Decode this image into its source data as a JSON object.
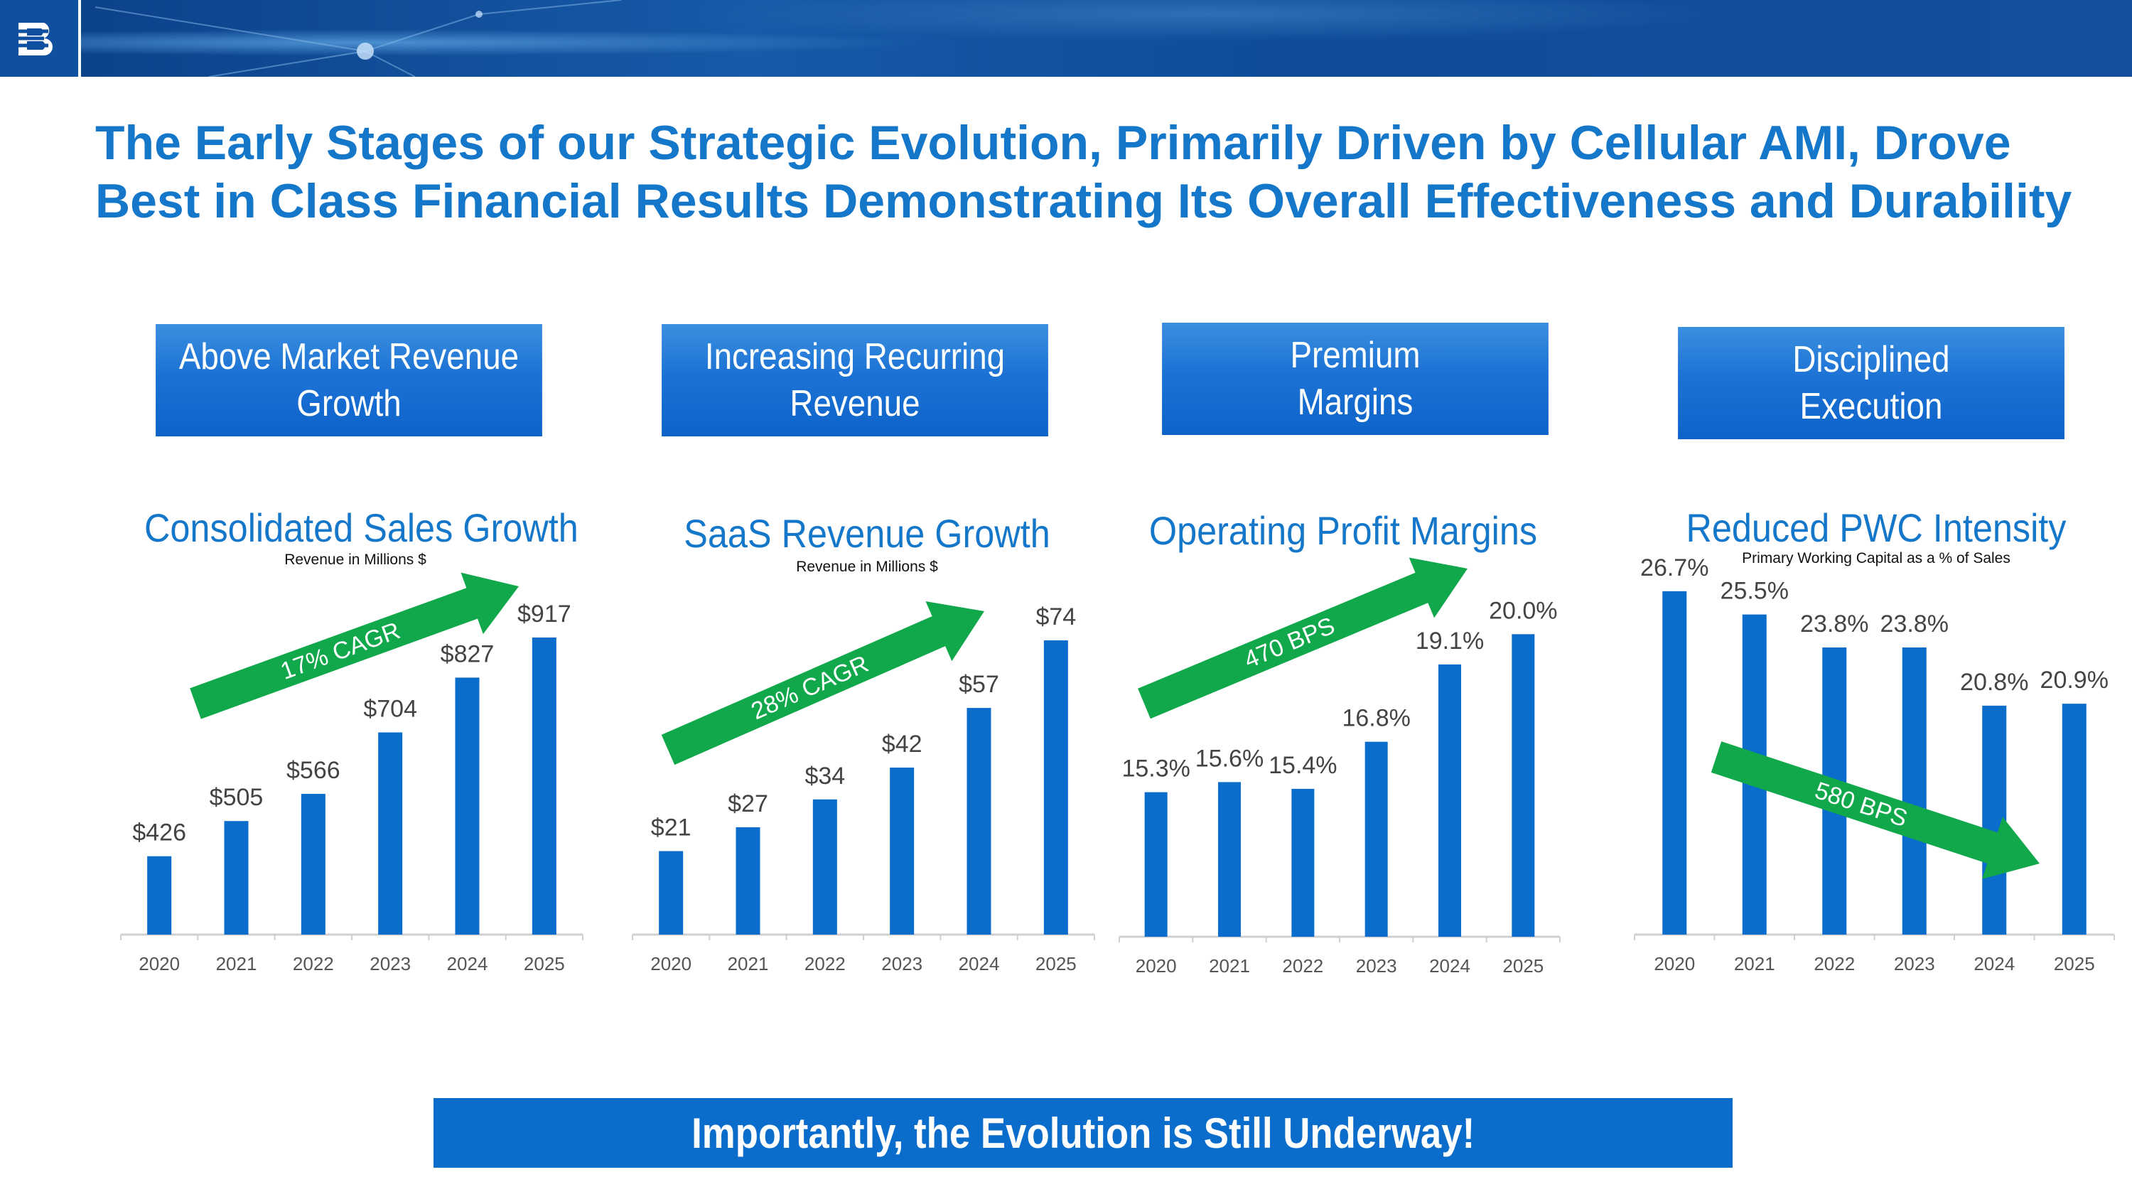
{
  "header": {
    "logo_icon": "badger-meter-logo-icon",
    "title": "The Early Stages of our Strategic Evolution, Primarily Driven by Cellular AMI, Drove Best in Class Financial Results Demonstrating Its Overall Effectiveness and Durability"
  },
  "pillars": [
    {
      "label": "Above Market Revenue\nGrowth"
    },
    {
      "label": "Increasing Recurring\nRevenue"
    },
    {
      "label": "Premium\nMargins"
    },
    {
      "label": "Disciplined\nExecution"
    }
  ],
  "colors": {
    "bar": "#0a6ccb",
    "arrow": "#10a84a",
    "title": "#1477c9"
  },
  "chart_data": [
    {
      "type": "bar",
      "title": "Consolidated Sales Growth",
      "subtitle": "Revenue in Millions $",
      "categories": [
        "2020",
        "2021",
        "2022",
        "2023",
        "2024",
        "2025"
      ],
      "values": [
        426,
        505,
        566,
        704,
        827,
        917
      ],
      "data_labels": [
        "$426",
        "$505",
        "$566",
        "$704",
        "$827",
        "$917"
      ],
      "ylim": [
        250,
        1000
      ],
      "annotation": {
        "text": "17% CAGR",
        "direction": "up"
      }
    },
    {
      "type": "bar",
      "title": "SaaS Revenue Growth",
      "subtitle": "Revenue in Millions $",
      "categories": [
        "2020",
        "2021",
        "2022",
        "2023",
        "2024",
        "2025"
      ],
      "values": [
        21,
        27,
        34,
        42,
        57,
        74
      ],
      "data_labels": [
        "$21",
        "$27",
        "$34",
        "$42",
        "$57",
        "$74"
      ],
      "ylim": [
        0,
        84
      ],
      "annotation": {
        "text": "28% CAGR",
        "direction": "up"
      }
    },
    {
      "type": "bar",
      "title": "Operating Profit Margins",
      "subtitle": "",
      "categories": [
        "2020",
        "2021",
        "2022",
        "2023",
        "2024",
        "2025"
      ],
      "values": [
        15.3,
        15.6,
        15.4,
        16.8,
        19.1,
        20.0
      ],
      "data_labels": [
        "15.3%",
        "15.6%",
        "15.4%",
        "16.8%",
        "19.1%",
        "20.0%"
      ],
      "ylim": [
        11,
        21
      ],
      "annotation": {
        "text": "470 BPS",
        "direction": "up"
      }
    },
    {
      "type": "bar",
      "title": "Reduced PWC Intensity",
      "subtitle": "Primary Working Capital as a % of Sales",
      "categories": [
        "2020",
        "2021",
        "2022",
        "2023",
        "2024",
        "2025"
      ],
      "values": [
        26.7,
        25.5,
        23.8,
        23.8,
        20.8,
        20.9
      ],
      "data_labels": [
        "26.7%",
        "25.5%",
        "23.8%",
        "23.8%",
        "20.8%",
        "20.9%"
      ],
      "ylim": [
        9,
        27.5
      ],
      "annotation": {
        "text": "580 BPS",
        "direction": "down"
      }
    }
  ],
  "footer": {
    "text": "Importantly, the Evolution is Still Underway!"
  }
}
